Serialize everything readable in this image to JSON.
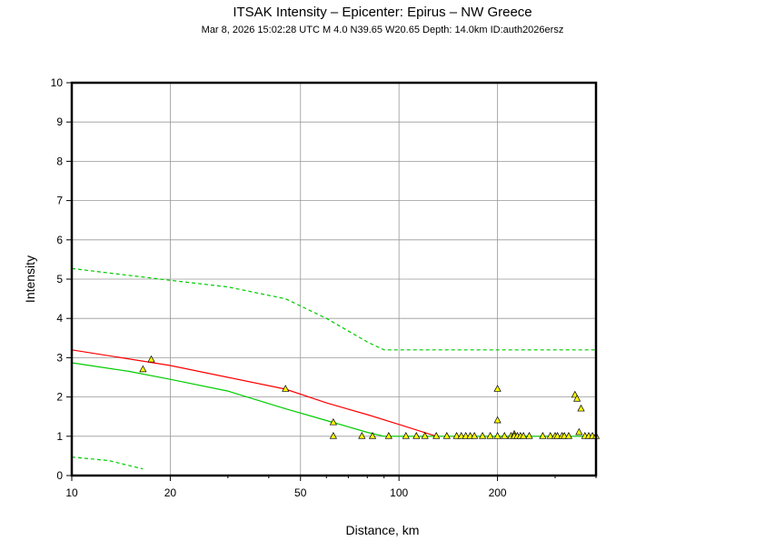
{
  "chart_data": {
    "type": "scatter",
    "title": "ITSAK Intensity –   Epicenter: Epirus – NW Greece",
    "subtitle": "Mar  8, 2026 15:02:28 UTC    M 4.0    N39.65 W20.65    Depth: 14.0km    ID:auth2026ersz",
    "xlabel": "Distance, km",
    "ylabel": "Intensity",
    "x_scale": "log",
    "xlim": [
      10,
      400
    ],
    "ylim": [
      0,
      10
    ],
    "x_ticks": [
      10,
      20,
      50,
      100,
      200
    ],
    "x_tick_labels": [
      "10",
      "20",
      "50",
      "100",
      "200"
    ],
    "y_ticks": [
      0,
      1,
      2,
      3,
      4,
      5,
      6,
      7,
      8,
      9,
      10
    ],
    "y_tick_labels": [
      "0",
      "1",
      "2",
      "3",
      "4",
      "5",
      "6",
      "7",
      "8",
      "9",
      "10"
    ],
    "grid": true,
    "colors": {
      "red_line": "#ff0000",
      "green_line": "#00cc00",
      "green_dashed": "#00cc00",
      "marker_fill": "#ffff00",
      "marker_stroke": "#000000"
    },
    "series": [
      {
        "style": "solid-red",
        "x": [
          10,
          20,
          30,
          45,
          60,
          80,
          100,
          130
        ],
        "y": [
          3.2,
          2.8,
          2.5,
          2.2,
          1.85,
          1.55,
          1.3,
          1.0
        ]
      },
      {
        "style": "solid-green",
        "x": [
          10,
          15,
          20,
          30,
          45,
          60,
          80,
          90,
          400
        ],
        "y": [
          2.87,
          2.65,
          2.45,
          2.15,
          1.7,
          1.4,
          1.1,
          1.0,
          1.0
        ]
      },
      {
        "style": "dashed-green-upper",
        "x": [
          10,
          20,
          30,
          45,
          60,
          80,
          90,
          400
        ],
        "y": [
          5.27,
          4.97,
          4.8,
          4.5,
          4.0,
          3.4,
          3.2,
          3.2
        ]
      },
      {
        "style": "dashed-green-lower",
        "x": [
          10,
          13,
          16.5
        ],
        "y": [
          0.47,
          0.38,
          0.17
        ]
      },
      {
        "style": "triangles",
        "x": [
          16.5,
          17.5,
          45,
          63,
          63,
          77,
          83,
          93,
          105,
          113,
          120,
          130,
          140,
          150,
          155,
          160,
          165,
          170,
          180,
          190,
          200,
          200,
          200,
          210,
          220,
          225,
          225,
          230,
          235,
          240,
          250,
          275,
          290,
          300,
          305,
          315,
          320,
          330,
          345,
          350,
          355,
          360,
          370,
          380,
          390,
          400
        ],
        "y": [
          2.7,
          2.95,
          2.2,
          1.35,
          1.0,
          1.0,
          1.0,
          1.0,
          1.0,
          1.0,
          1.0,
          1.0,
          1.0,
          1.0,
          1.0,
          1.0,
          1.0,
          1.0,
          1.0,
          1.0,
          2.2,
          1.4,
          1.0,
          1.0,
          1.0,
          1.05,
          1.0,
          1.0,
          1.0,
          1.0,
          1.0,
          1.0,
          1.0,
          1.0,
          1.0,
          1.0,
          1.0,
          1.0,
          2.05,
          1.95,
          1.1,
          1.7,
          1.0,
          1.0,
          1.0,
          1.0
        ]
      }
    ]
  }
}
